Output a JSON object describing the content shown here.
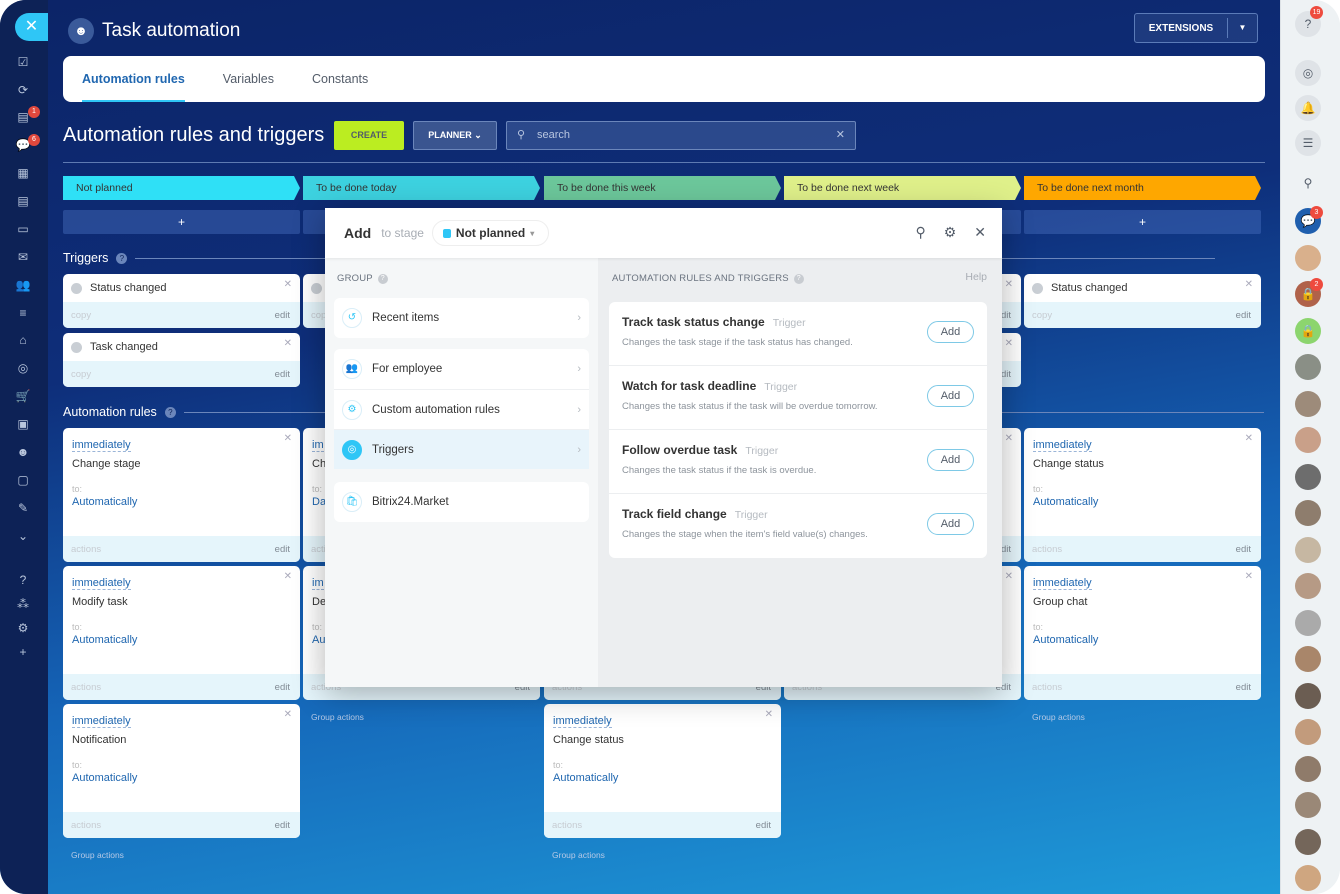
{
  "app": {
    "title": "Task automation",
    "close_icon": "close-icon",
    "extensions": "EXTENSIONS"
  },
  "tabs": [
    "Automation rules",
    "Variables",
    "Constants"
  ],
  "toolbar": {
    "heading": "Automation rules and triggers",
    "create": "CREATE",
    "planner": "PLANNER",
    "search_placeholder": "search"
  },
  "stages": [
    {
      "label": "Not planned",
      "color": "#2fe0f6"
    },
    {
      "label": "To be done today",
      "color": "#3dd2e0"
    },
    {
      "label": "To be done this week",
      "color": "#6cc79b"
    },
    {
      "label": "To be done next week",
      "color": "#dff08a"
    },
    {
      "label": "To be done next month",
      "color": "#fea700"
    }
  ],
  "add_symbol": "+",
  "sections": {
    "triggers": "Triggers",
    "rules": "Automation rules"
  },
  "card_labels": {
    "copy": "copy",
    "edit": "edit",
    "actions": "actions",
    "to": "to:",
    "group_actions": "Group actions"
  },
  "triggers": [
    [
      {
        "name": "Status changed"
      },
      {
        "name": "Task changed"
      }
    ],
    [
      {
        "name": ""
      }
    ],
    [],
    [
      {
        "name": ""
      },
      {
        "name": ""
      }
    ],
    [
      {
        "name": "Status changed"
      }
    ]
  ],
  "rules": [
    [
      {
        "when": "immediately",
        "name": "Change stage",
        "target": "Automatically"
      },
      {
        "when": "immediately",
        "name": "Modify task",
        "target": "Automatically"
      },
      {
        "when": "immediately",
        "name": "Notification",
        "target": "Automatically"
      }
    ],
    [
      {
        "when": "im",
        "name": "Ch",
        "target": "Da"
      },
      {
        "when": "im",
        "name": "De",
        "target": "Au"
      }
    ],
    [
      {
        "when": "",
        "name": "",
        "target": ""
      },
      {
        "when": "",
        "name": "",
        "target": ""
      },
      {
        "when": "immediately",
        "name": "Change status",
        "target": "Automatically"
      }
    ],
    [
      {
        "when": "",
        "name": "",
        "target": ""
      },
      {
        "when": "",
        "name": "",
        "target": ""
      }
    ],
    [
      {
        "when": "immediately",
        "name": "Change status",
        "target": "Automatically"
      },
      {
        "when": "immediately",
        "name": "Group chat",
        "target": "Automatically"
      }
    ]
  ],
  "modal": {
    "add": "Add",
    "to_stage": "to stage",
    "stage": "Not planned",
    "group_label": "GROUP",
    "list_label": "AUTOMATION RULES AND TRIGGERS",
    "help": "Help",
    "groups": [
      [
        {
          "label": "Recent items",
          "icon": "history-icon",
          "glyph": "↺"
        }
      ],
      [
        {
          "label": "For employee",
          "icon": "users-icon",
          "glyph": "👥"
        },
        {
          "label": "Custom automation rules",
          "icon": "robot-icon",
          "glyph": "⚙"
        },
        {
          "label": "Triggers",
          "icon": "trigger-icon",
          "glyph": "◎",
          "selected": true
        }
      ],
      [
        {
          "label": "Bitrix24.Market",
          "icon": "market-bag-icon",
          "glyph": "🛍"
        }
      ]
    ],
    "items": [
      {
        "title": "Track task status change",
        "type": "Trigger",
        "desc": "Changes the task stage if the task status has changed.",
        "button": "Add"
      },
      {
        "title": "Watch for task deadline",
        "type": "Trigger",
        "desc": "Changes the task status if the task will be overdue tomorrow.",
        "button": "Add"
      },
      {
        "title": "Follow overdue task",
        "type": "Trigger",
        "desc": "Changes the task status if the task is overdue.",
        "button": "Add"
      },
      {
        "title": "Track field change",
        "type": "Trigger",
        "desc": "Changes the stage when the item's field value(s) changes.",
        "button": "Add"
      }
    ]
  },
  "left_sidebar": {
    "badges": {
      "mail": "1",
      "chat": "6"
    }
  },
  "right_sidebar": {
    "help_badge": "19",
    "chat_badge": "3",
    "lock_badge": "2"
  }
}
